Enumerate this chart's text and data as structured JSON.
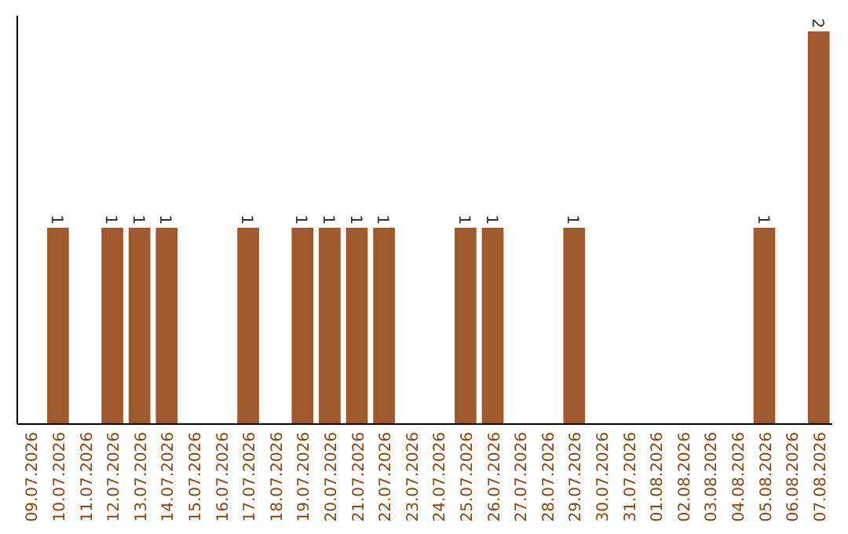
{
  "chart_data": {
    "type": "bar",
    "categories": [
      "09.07.2026",
      "10.07.2026",
      "11.07.2026",
      "12.07.2026",
      "13.07.2026",
      "14.07.2026",
      "15.07.2026",
      "16.07.2026",
      "17.07.2026",
      "18.07.2026",
      "19.07.2026",
      "20.07.2026",
      "21.07.2026",
      "22.07.2026",
      "23.07.2026",
      "24.07.2026",
      "25.07.2026",
      "26.07.2026",
      "27.07.2026",
      "28.07.2026",
      "29.07.2026",
      "30.07.2026",
      "31.07.2026",
      "01.08.2026",
      "02.08.2026",
      "03.08.2026",
      "04.08.2026",
      "05.08.2026",
      "06.08.2026",
      "07.08.2026"
    ],
    "values": [
      0,
      1,
      0,
      1,
      1,
      1,
      0,
      0,
      1,
      0,
      1,
      1,
      1,
      1,
      0,
      0,
      1,
      1,
      0,
      0,
      1,
      0,
      0,
      0,
      0,
      0,
      0,
      1,
      0,
      2
    ],
    "value_labels": [
      null,
      "1",
      null,
      "1",
      "1",
      "1",
      null,
      null,
      "1",
      null,
      "1",
      "1",
      "1",
      "1",
      null,
      null,
      "1",
      "1",
      null,
      null,
      "1",
      null,
      null,
      null,
      null,
      null,
      null,
      "1",
      null,
      "2"
    ],
    "color": "#a0592c",
    "tick_labels": "x"
  }
}
